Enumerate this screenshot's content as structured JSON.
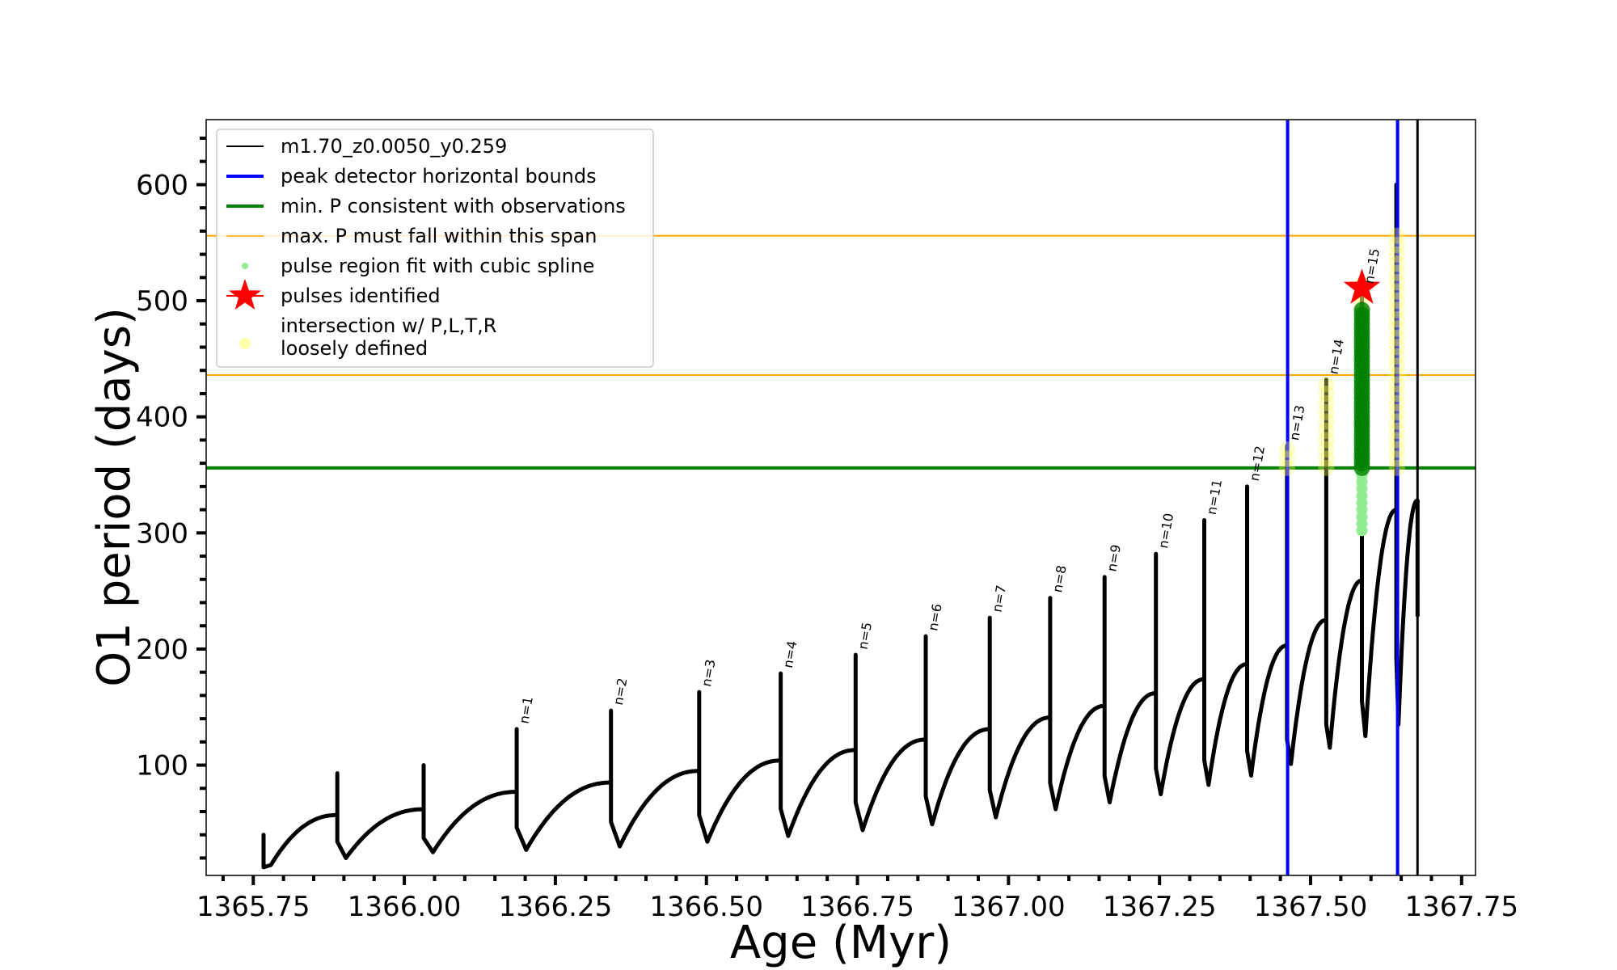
{
  "chart_data": {
    "type": "line",
    "xlabel": "Age (Myr)",
    "ylabel": "O1 period (days)",
    "xlim": [
      1365.672,
      1367.773
    ],
    "ylim": [
      5,
      656
    ],
    "xticks": [
      1365.75,
      1366.0,
      1366.25,
      1366.5,
      1366.75,
      1367.0,
      1367.25,
      1367.5,
      1367.75
    ],
    "xtick_labels": [
      "1365.75",
      "1366.00",
      "1366.25",
      "1366.50",
      "1366.75",
      "1367.00",
      "1367.25",
      "1367.50",
      "1367.75"
    ],
    "yticks": [
      100,
      200,
      300,
      400,
      500,
      600
    ],
    "ytick_labels": [
      "100",
      "200",
      "300",
      "400",
      "500",
      "600"
    ],
    "grid": false,
    "legend_placement": "upper-left",
    "legend": [
      {
        "label": "m1.70_z0.0050_y0.259",
        "kind": "line",
        "color": "#000000"
      },
      {
        "label": "peak detector horizontal bounds",
        "kind": "line",
        "color": "#0000ff"
      },
      {
        "label": "min. P consistent with observations",
        "kind": "line",
        "color": "#008000"
      },
      {
        "label": "max. P must fall within this span",
        "kind": "thinline",
        "color": "#ffa500"
      },
      {
        "label": "pulse region fit with cubic spline",
        "kind": "dot",
        "color": "#90ee90"
      },
      {
        "label": "pulses identified",
        "kind": "star",
        "color": "#ff0000"
      },
      {
        "label": "intersection w/ P,L,T,R",
        "label2": "loosely defined",
        "kind": "bigdot",
        "color": "#ffffaa"
      }
    ],
    "series_track": {
      "name": "m1.70_z0.0050_y0.259",
      "pulse_ages": [
        1365.767,
        1365.889,
        1366.032,
        1366.186,
        1366.342,
        1366.488,
        1366.623,
        1366.747,
        1366.863,
        1366.969,
        1367.069,
        1367.159,
        1367.244,
        1367.324,
        1367.395,
        1367.461,
        1367.526,
        1367.585,
        1367.642
      ],
      "pulse_peaks": [
        40,
        93,
        100,
        131,
        147,
        163,
        179,
        195,
        211,
        227,
        244,
        262,
        282,
        311,
        340,
        375,
        432,
        510,
        600
      ],
      "post_pulse_minima": [
        14,
        20,
        25,
        27,
        30,
        34,
        39,
        44,
        49,
        55,
        62,
        68,
        75,
        83,
        91,
        101,
        115,
        125,
        135
      ],
      "pre_pulse_plateau": [
        null,
        57,
        62,
        77,
        85,
        95,
        104,
        113,
        122,
        131,
        141,
        151,
        162,
        174,
        187,
        203,
        225,
        259,
        320
      ],
      "end": {
        "age": 1367.677,
        "peak": 328,
        "final": 228
      }
    },
    "pulse_labels": [
      {
        "n": "n=1",
        "age": 1366.186,
        "P": 131
      },
      {
        "n": "n=2",
        "age": 1366.342,
        "P": 147
      },
      {
        "n": "n=3",
        "age": 1366.488,
        "P": 163
      },
      {
        "n": "n=4",
        "age": 1366.623,
        "P": 179
      },
      {
        "n": "n=5",
        "age": 1366.747,
        "P": 195
      },
      {
        "n": "n=6",
        "age": 1366.863,
        "P": 211
      },
      {
        "n": "n=7",
        "age": 1366.969,
        "P": 227
      },
      {
        "n": "n=8",
        "age": 1367.069,
        "P": 244
      },
      {
        "n": "n=9",
        "age": 1367.159,
        "P": 262
      },
      {
        "n": "n=10",
        "age": 1367.244,
        "P": 282
      },
      {
        "n": "n=11",
        "age": 1367.324,
        "P": 311
      },
      {
        "n": "n=12",
        "age": 1367.395,
        "P": 340
      },
      {
        "n": "n=13",
        "age": 1367.461,
        "P": 375
      },
      {
        "n": "n=14",
        "age": 1367.526,
        "P": 432
      },
      {
        "n": "n=15",
        "age": 1367.585,
        "P": 510
      }
    ],
    "vlines_blue": [
      1367.462,
      1367.644
    ],
    "vline_black": 1367.677,
    "hline_green": 356,
    "hlines_orange": [
      436,
      556
    ],
    "star": {
      "age": 1367.585,
      "P": 511
    },
    "spline_points": {
      "age": 1367.585,
      "P_range": [
        302,
        356
      ],
      "dark_range": [
        356,
        495
      ]
    },
    "intersection_points": [
      {
        "age": 1367.461,
        "P_range": [
          356,
          378
        ]
      },
      {
        "age": 1367.526,
        "P_range": [
          356,
          432
        ]
      },
      {
        "age": 1367.585,
        "P_range": [
          490,
          515
        ]
      },
      {
        "age": 1367.643,
        "P_range": [
          356,
          556
        ]
      }
    ]
  }
}
